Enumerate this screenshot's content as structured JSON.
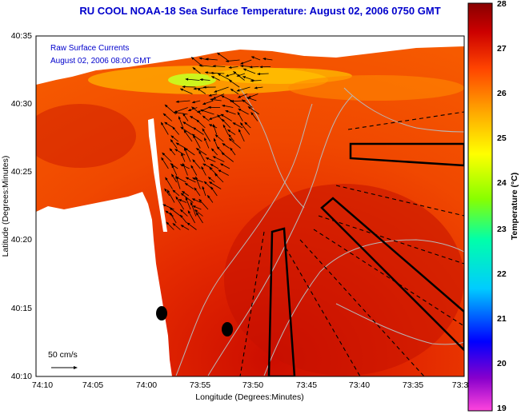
{
  "title": "RU COOL  NOAA-18  Sea Surface Temperature:  August 02, 2006 0750 GMT",
  "currents_label": "Raw Surface Currents",
  "currents_time": "August 02, 2006 08:00 GMT",
  "scale_label": "50 cm/s",
  "x_axis": {
    "label": "Longitude (Degrees:Minutes)",
    "ticks": [
      "74:10",
      "74:05",
      "74:00",
      "73:55",
      "73:50",
      "73:45",
      "73:40",
      "73:35",
      "73:3"
    ]
  },
  "y_axis": {
    "label": "Latitude (Degrees:Minutes)",
    "ticks": [
      "40:35",
      "40:30",
      "40:25",
      "40:20",
      "40:15",
      "40:10"
    ]
  },
  "colorbar": {
    "label": "Temperature (°C)",
    "ticks": [
      "28",
      "27",
      "26",
      "25",
      "24",
      "23",
      "22",
      "21",
      "20",
      "19"
    ],
    "min": 19,
    "max": 28,
    "colors": [
      "#ff44dd",
      "#8800cc",
      "#0000ff",
      "#00ccff",
      "#00ffaa",
      "#88ff00",
      "#ffff00",
      "#ffaa00",
      "#ff4400",
      "#cc0000",
      "#880000"
    ]
  }
}
